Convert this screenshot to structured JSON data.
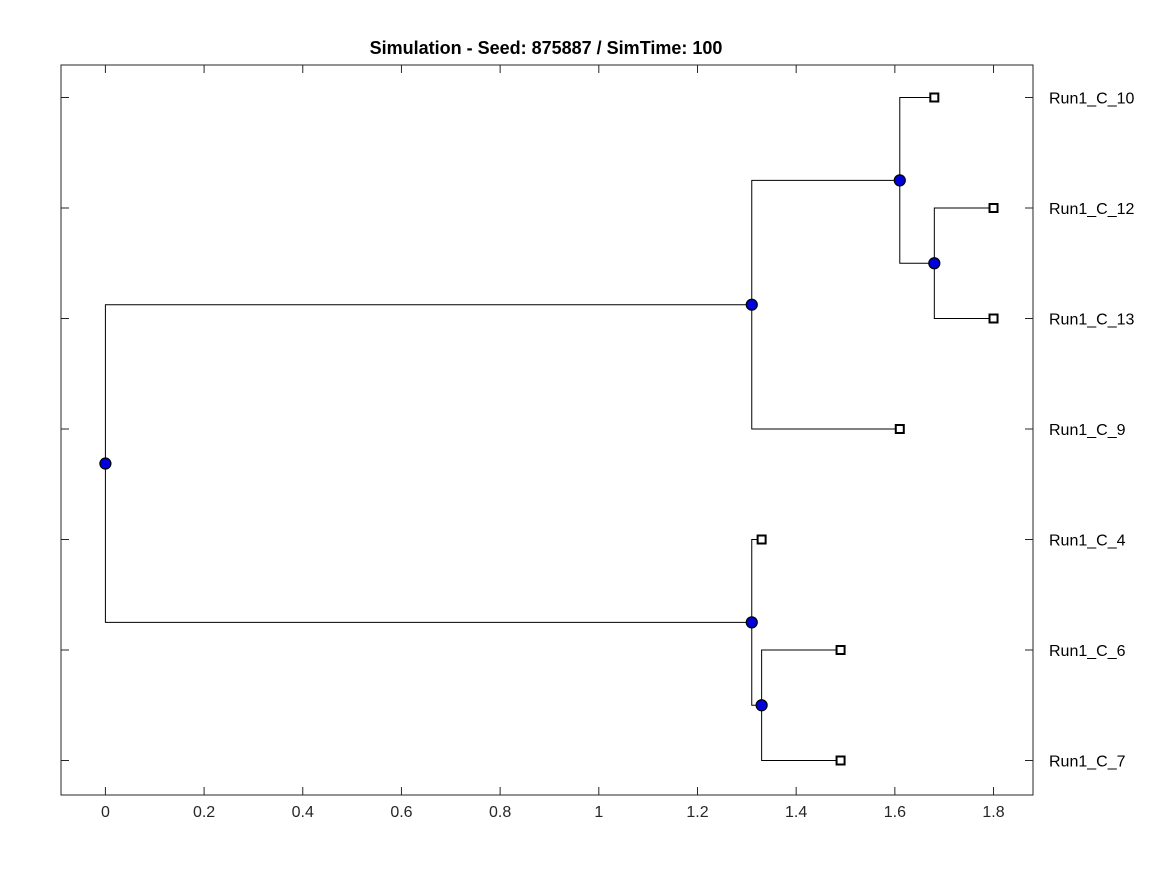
{
  "chart_data": {
    "type": "dendrogram",
    "title": "Simulation - Seed: 875887 / SimTime: 100",
    "xlim": [
      -0.09,
      1.88
    ],
    "x_ticks": [
      0,
      0.2,
      0.4,
      0.6,
      0.8,
      1,
      1.2,
      1.4,
      1.6,
      1.8
    ],
    "x_tick_labels": [
      "0",
      "0.2",
      "0.4",
      "0.6",
      "0.8",
      "1",
      "1.2",
      "1.4",
      "1.6",
      "1.8"
    ],
    "grid": false,
    "node_color": "#0000dd",
    "leaves": [
      {
        "name": "Run1_C_10",
        "x": 1.68
      },
      {
        "name": "Run1_C_12",
        "x": 1.8
      },
      {
        "name": "Run1_C_13",
        "x": 1.8
      },
      {
        "name": "Run1_C_9",
        "x": 1.61
      },
      {
        "name": "Run1_C_4",
        "x": 1.33
      },
      {
        "name": "Run1_C_6",
        "x": 1.49
      },
      {
        "name": "Run1_C_7",
        "x": 1.49
      }
    ],
    "internal_nodes": [
      {
        "id": "n12_13",
        "x": 1.68,
        "children": [
          "Run1_C_12",
          "Run1_C_13"
        ]
      },
      {
        "id": "n10_12_13",
        "x": 1.61,
        "children": [
          "Run1_C_10",
          "n12_13"
        ]
      },
      {
        "id": "nTop",
        "x": 1.31,
        "children": [
          "n10_12_13",
          "Run1_C_9"
        ]
      },
      {
        "id": "n6_7",
        "x": 1.33,
        "children": [
          "Run1_C_6",
          "Run1_C_7"
        ]
      },
      {
        "id": "nBottom",
        "x": 1.31,
        "children": [
          "Run1_C_4",
          "n6_7"
        ]
      },
      {
        "id": "root",
        "x": 0,
        "children": [
          "nTop",
          "nBottom"
        ]
      }
    ]
  }
}
